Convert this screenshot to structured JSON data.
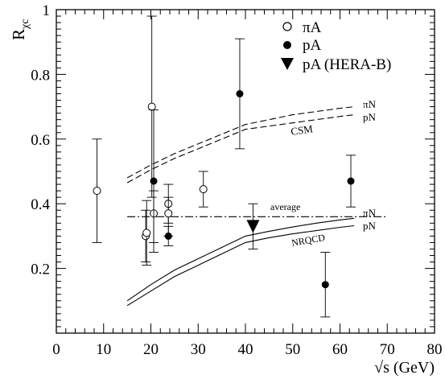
{
  "chart_data": {
    "type": "scatter",
    "xlabel": "√s (GeV)",
    "ylabel_main": "R",
    "ylabel_sub": "χc",
    "xlim": [
      0,
      80
    ],
    "ylim": [
      0,
      1
    ],
    "x_ticks": [
      0,
      10,
      20,
      30,
      40,
      50,
      60,
      70,
      80
    ],
    "y_ticks": [
      0.2,
      0.4,
      0.6,
      0.8,
      1
    ],
    "x_tick_labels": [
      "0",
      "10",
      "20",
      "30",
      "40",
      "50",
      "60",
      "70",
      "80"
    ],
    "y_tick_labels": [
      "0.2",
      "0.4",
      "0.6",
      "0.8",
      "1"
    ],
    "legend": {
      "position": "top-right",
      "entries": [
        {
          "label": "πA",
          "marker": "open-circle"
        },
        {
          "label": "pA",
          "marker": "filled-circle"
        },
        {
          "label": "pA (HERA-B)",
          "marker": "filled-triangle-down"
        }
      ]
    },
    "series": [
      {
        "name": "πA",
        "marker": "open-circle",
        "points": [
          {
            "x": 8.6,
            "y": 0.44,
            "ylo": 0.28,
            "yhi": 0.6
          },
          {
            "x": 18.9,
            "y": 0.3,
            "ylo": 0.22,
            "yhi": 0.38
          },
          {
            "x": 19.1,
            "y": 0.31,
            "ylo": 0.21,
            "yhi": 0.41
          },
          {
            "x": 20.2,
            "y": 0.7,
            "ylo": 0.42,
            "yhi": 0.98
          },
          {
            "x": 20.6,
            "y": 0.37,
            "ylo": 0.28,
            "yhi": 0.44
          },
          {
            "x": 23.7,
            "y": 0.4,
            "ylo": 0.34,
            "yhi": 0.46
          },
          {
            "x": 23.7,
            "y": 0.37,
            "ylo": 0.3,
            "yhi": 0.42
          },
          {
            "x": 31.1,
            "y": 0.445,
            "ylo": 0.39,
            "yhi": 0.5
          }
        ]
      },
      {
        "name": "pA",
        "marker": "filled-circle",
        "points": [
          {
            "x": 20.6,
            "y": 0.47,
            "ylo": 0.25,
            "yhi": 0.69
          },
          {
            "x": 23.7,
            "y": 0.3,
            "ylo": 0.27,
            "yhi": 0.33
          },
          {
            "x": 38.8,
            "y": 0.74,
            "ylo": 0.57,
            "yhi": 0.91
          },
          {
            "x": 56.9,
            "y": 0.15,
            "ylo": 0.05,
            "yhi": 0.25
          },
          {
            "x": 62.3,
            "y": 0.47,
            "ylo": 0.39,
            "yhi": 0.55
          }
        ]
      },
      {
        "name": "pA (HERA-B)",
        "marker": "filled-triangle-down",
        "points": [
          {
            "x": 41.6,
            "y": 0.33,
            "ylo": 0.26,
            "yhi": 0.4
          }
        ]
      }
    ],
    "curves": [
      {
        "name": "CSM πN",
        "style": "dashed",
        "x": [
          15,
          20,
          25,
          30,
          35,
          40,
          45,
          50,
          55,
          60,
          63
        ],
        "y": [
          0.48,
          0.52,
          0.555,
          0.585,
          0.615,
          0.645,
          0.66,
          0.675,
          0.685,
          0.695,
          0.7
        ]
      },
      {
        "name": "CSM pN",
        "style": "dashed",
        "x": [
          15,
          20,
          25,
          30,
          35,
          40,
          45,
          50,
          55,
          60,
          63
        ],
        "y": [
          0.465,
          0.505,
          0.54,
          0.57,
          0.6,
          0.63,
          0.64,
          0.65,
          0.66,
          0.67,
          0.675
        ]
      },
      {
        "name": "NRQCD πN",
        "style": "solid",
        "x": [
          15,
          20,
          25,
          30,
          35,
          40,
          45,
          50,
          55,
          60,
          63
        ],
        "y": [
          0.1,
          0.15,
          0.195,
          0.23,
          0.265,
          0.3,
          0.315,
          0.328,
          0.34,
          0.35,
          0.355
        ]
      },
      {
        "name": "NRQCD pN",
        "style": "solid",
        "x": [
          15,
          20,
          25,
          30,
          35,
          40,
          45,
          50,
          55,
          60,
          63
        ],
        "y": [
          0.085,
          0.13,
          0.175,
          0.21,
          0.245,
          0.28,
          0.295,
          0.307,
          0.317,
          0.327,
          0.332
        ]
      },
      {
        "name": "average",
        "style": "dashdot",
        "x": [
          15,
          70
        ],
        "y": [
          0.36,
          0.36
        ]
      }
    ],
    "annotations": {
      "csm": "CSM",
      "csm_pin": "πN",
      "csm_pn": "pN",
      "nrqcd": "NRQCD",
      "nrqcd_pin": "πN",
      "nrqcd_pn": "pN",
      "average": "average"
    }
  }
}
